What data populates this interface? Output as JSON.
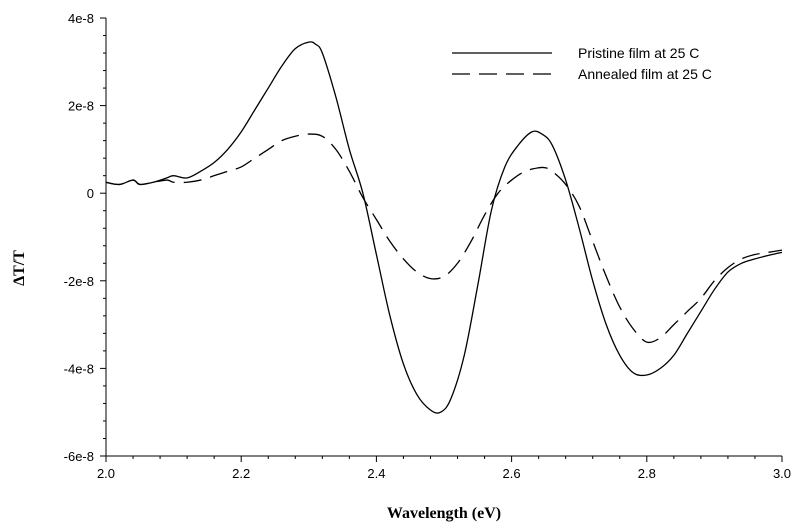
{
  "chart_data": {
    "type": "line",
    "xlabel": "Wavelength (eV)",
    "ylabel": "ΔT/T",
    "xlim": [
      2.0,
      3.0
    ],
    "ylim": [
      -6e-08,
      4e-08
    ],
    "x_ticks": [
      2.0,
      2.2,
      2.4,
      2.6,
      2.8,
      3.0
    ],
    "x_tick_labels": [
      "2.0",
      "2.2",
      "2.4",
      "2.6",
      "2.8",
      "3.0"
    ],
    "y_ticks": [
      4e-08,
      2e-08,
      0,
      -2e-08,
      -4e-08,
      -6e-08
    ],
    "y_tick_labels": [
      "4e-8",
      "2e-8",
      "0",
      "-2e-8",
      "-4e-8",
      "-6e-8"
    ],
    "grid": false,
    "legend_position": "top-right",
    "series": [
      {
        "name": "Pristine film at 25 C",
        "style": "solid",
        "color": "#000000",
        "x": [
          2.0,
          2.02,
          2.04,
          2.05,
          2.07,
          2.09,
          2.1,
          2.12,
          2.14,
          2.16,
          2.18,
          2.2,
          2.22,
          2.24,
          2.26,
          2.28,
          2.3,
          2.31,
          2.32,
          2.34,
          2.36,
          2.38,
          2.4,
          2.42,
          2.44,
          2.46,
          2.48,
          2.495,
          2.51,
          2.53,
          2.55,
          2.57,
          2.59,
          2.61,
          2.63,
          2.645,
          2.66,
          2.68,
          2.7,
          2.72,
          2.74,
          2.76,
          2.78,
          2.8,
          2.82,
          2.84,
          2.86,
          2.88,
          2.9,
          2.92,
          2.94,
          2.96,
          2.98,
          3.0
        ],
        "y": [
          2.5e-09,
          2e-09,
          3e-09,
          2e-09,
          2.5e-09,
          3.5e-09,
          4e-09,
          3.5e-09,
          5e-09,
          7e-09,
          1e-08,
          1.4e-08,
          1.9e-08,
          2.4e-08,
          2.9e-08,
          3.3e-08,
          3.45e-08,
          3.4e-08,
          3.2e-08,
          2.2e-08,
          1e-08,
          0.0,
          -1.4e-08,
          -2.8e-08,
          -3.9e-08,
          -4.6e-08,
          -4.95e-08,
          -5e-08,
          -4.7e-08,
          -3.7e-08,
          -2.1e-08,
          -4e-09,
          6e-09,
          1.1e-08,
          1.4e-08,
          1.35e-08,
          1.1e-08,
          3e-09,
          -8e-09,
          -2e-08,
          -3e-08,
          -3.7e-08,
          -4.1e-08,
          -4.15e-08,
          -4e-08,
          -3.7e-08,
          -3.2e-08,
          -2.7e-08,
          -2.2e-08,
          -1.8e-08,
          -1.6e-08,
          -1.5e-08,
          -1.42e-08,
          -1.35e-08
        ]
      },
      {
        "name": "Annealed film at 25 C",
        "style": "dashed",
        "color": "#000000",
        "x": [
          2.0,
          2.02,
          2.04,
          2.05,
          2.07,
          2.09,
          2.1,
          2.12,
          2.14,
          2.16,
          2.18,
          2.2,
          2.22,
          2.24,
          2.26,
          2.28,
          2.3,
          2.32,
          2.34,
          2.36,
          2.38,
          2.4,
          2.42,
          2.44,
          2.46,
          2.48,
          2.5,
          2.52,
          2.54,
          2.56,
          2.58,
          2.6,
          2.62,
          2.64,
          2.65,
          2.66,
          2.68,
          2.7,
          2.72,
          2.74,
          2.76,
          2.78,
          2.8,
          2.82,
          2.84,
          2.86,
          2.88,
          2.9,
          2.92,
          2.94,
          2.96,
          2.98,
          3.0
        ],
        "y": [
          2.5e-09,
          2e-09,
          3e-09,
          2e-09,
          2.5e-09,
          3e-09,
          2.5e-09,
          2.5e-09,
          3e-09,
          4e-09,
          5e-09,
          6e-09,
          8e-09,
          1e-08,
          1.2e-08,
          1.3e-08,
          1.35e-08,
          1.3e-08,
          1e-08,
          5e-09,
          -1e-09,
          -6e-09,
          -1.1e-08,
          -1.5e-08,
          -1.8e-08,
          -1.95e-08,
          -1.9e-08,
          -1.6e-08,
          -1.1e-08,
          -5e-09,
          0.0,
          3e-09,
          5e-09,
          5.8e-09,
          5.8e-09,
          5e-09,
          2e-09,
          -3e-09,
          -1.1e-08,
          -1.9e-08,
          -2.6e-08,
          -3.1e-08,
          -3.4e-08,
          -3.3e-08,
          -3e-08,
          -2.7e-08,
          -2.4e-08,
          -2e-08,
          -1.7e-08,
          -1.5e-08,
          -1.4e-08,
          -1.35e-08,
          -1.3e-08
        ]
      }
    ]
  }
}
